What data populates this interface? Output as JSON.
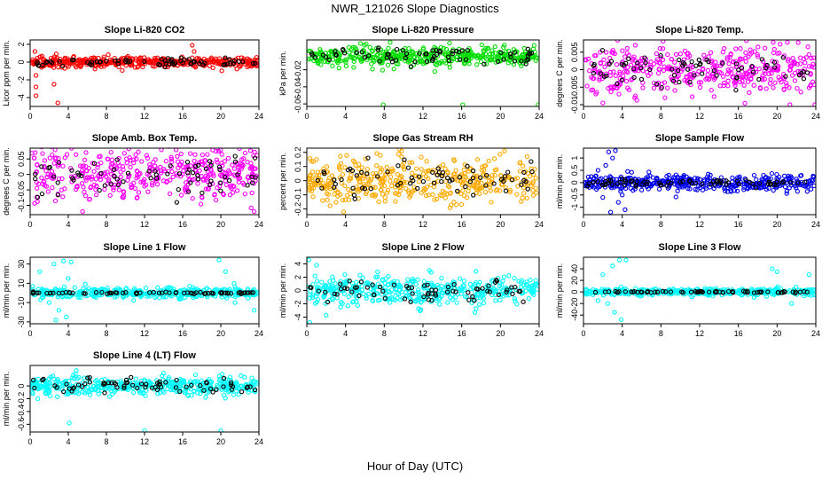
{
  "figure": {
    "title": "NWR_121026  Slope Diagnostics",
    "xlabel": "Hour of Day (UTC)"
  },
  "chart_data": [
    {
      "type": "scatter",
      "title": "Slope Li-820 CO2",
      "ylabel": "Licor ppm per min.",
      "xlim": [
        0,
        24
      ],
      "xticks": [
        0,
        4,
        8,
        12,
        16,
        20,
        24
      ],
      "ylim": [
        -5,
        2.5
      ],
      "yticks": [
        -4,
        -2,
        0,
        2
      ],
      "color": "#ff0000",
      "center": 0,
      "spread": 0.28,
      "black_spread": 0.2,
      "outliers": [
        {
          "x": 0.5,
          "y": 1.2
        },
        {
          "x": 0.6,
          "y": -1.5
        },
        {
          "x": 0.6,
          "y": -2.8
        },
        {
          "x": 0.6,
          "y": -3.8
        },
        {
          "x": 2.5,
          "y": -2.5
        },
        {
          "x": 2.9,
          "y": -4.6
        },
        {
          "x": 17,
          "y": 1.9
        },
        {
          "x": 17.2,
          "y": 1.2
        }
      ]
    },
    {
      "type": "scatter",
      "title": "Slope Li-820 Pressure",
      "ylabel": "kPa per min.",
      "xlim": [
        0,
        24
      ],
      "xticks": [
        0,
        4,
        8,
        12,
        16,
        20,
        24
      ],
      "ylim": [
        -0.063,
        0.015
      ],
      "yticks": [
        -0.06,
        -0.04,
        -0.02
      ],
      "color": "#00dd00",
      "center": -0.004,
      "spread": 0.006,
      "black_spread": 0.005,
      "outliers": [
        {
          "x": 7.9,
          "y": -0.061
        },
        {
          "x": 9,
          "y": -0.019
        },
        {
          "x": 16.1,
          "y": -0.061
        },
        {
          "x": 23.9,
          "y": -0.061
        }
      ]
    },
    {
      "type": "scatter",
      "title": "Slope Li-820 Temp.",
      "ylabel": "degrees C per min.",
      "xlim": [
        0,
        24
      ],
      "xticks": [
        0,
        4,
        8,
        12,
        16,
        20,
        24
      ],
      "ylim": [
        -0.0105,
        0.0085
      ],
      "yticks": [
        -0.01,
        -0.005,
        0,
        0.005
      ],
      "color": "#ff00ff",
      "center": 0,
      "spread": 0.0035,
      "black_spread": 0.0025,
      "outliers": [
        {
          "x": 2,
          "y": -0.0095
        },
        {
          "x": 19.6,
          "y": 0.0078
        },
        {
          "x": 23.9,
          "y": -0.01
        }
      ]
    },
    {
      "type": "scatter",
      "title": "Slope Amb. Box Temp.",
      "ylabel": "degrees C per min.",
      "xlim": [
        0,
        24
      ],
      "xticks": [
        0,
        4,
        8,
        12,
        16,
        20,
        24
      ],
      "ylim": [
        -0.13,
        0.085
      ],
      "yticks": [
        -0.1,
        -0.05,
        0,
        0.05
      ],
      "color": "#ff00ff",
      "center": 0,
      "spread": 0.04,
      "black_spread": 0.03,
      "outliers": [
        {
          "x": 5.5,
          "y": -0.12
        },
        {
          "x": 19.5,
          "y": 0.075
        },
        {
          "x": 23.5,
          "y": -0.12
        }
      ]
    },
    {
      "type": "scatter",
      "title": "Slope Gas Stream RH",
      "ylabel": "percent per min.",
      "xlim": [
        0,
        24
      ],
      "xticks": [
        0,
        4,
        8,
        12,
        16,
        20,
        24
      ],
      "ylim": [
        -0.24,
        0.23
      ],
      "yticks": [
        -0.2,
        -0.1,
        0,
        0.1,
        0.2
      ],
      "color": "#ffaa00",
      "center": 0,
      "spread": 0.08,
      "black_spread": 0.06,
      "outliers": [
        {
          "x": 3.8,
          "y": -0.22
        },
        {
          "x": 9.8,
          "y": 0.21
        }
      ]
    },
    {
      "type": "scatter",
      "title": "Slope Sample Flow",
      "ylabel": "ml/min per min.",
      "xlim": [
        0,
        24
      ],
      "xticks": [
        0,
        4,
        8,
        12,
        16,
        20,
        24
      ],
      "ylim": [
        -1.3,
        1.4
      ],
      "yticks": [
        -1,
        -0.5,
        0,
        0.5,
        1
      ],
      "color": "#0000ee",
      "center": 0,
      "spread": 0.16,
      "black_spread": 0.08,
      "outliers": [
        {
          "x": 2.3,
          "y": 0.7
        },
        {
          "x": 3,
          "y": 1.0
        },
        {
          "x": 2.6,
          "y": 1.25
        },
        {
          "x": 3.3,
          "y": 1.3
        },
        {
          "x": 2,
          "y": -0.6
        },
        {
          "x": 2.8,
          "y": -1.2
        },
        {
          "x": 3.6,
          "y": -0.8
        },
        {
          "x": 4.3,
          "y": -1.1
        },
        {
          "x": 1.5,
          "y": 0.5
        },
        {
          "x": 4,
          "y": -0.5
        }
      ]
    },
    {
      "type": "scatter",
      "title": "Slope Line 1 Flow",
      "ylabel": "ml/min per min.",
      "xlim": [
        0,
        24
      ],
      "xticks": [
        0,
        4,
        8,
        12,
        16,
        20,
        24
      ],
      "ylim": [
        -32,
        37
      ],
      "yticks": [
        -30,
        -10,
        10,
        30
      ],
      "color": "#00ffff",
      "center": 0,
      "spread": 2.5,
      "black_spread": 0.4,
      "outliers": [
        {
          "x": 1,
          "y": 22
        },
        {
          "x": 2.5,
          "y": 30
        },
        {
          "x": 3.5,
          "y": 33
        },
        {
          "x": 4.3,
          "y": 32
        },
        {
          "x": 2,
          "y": -10
        },
        {
          "x": 3,
          "y": -18
        },
        {
          "x": 2.7,
          "y": -28
        },
        {
          "x": 4,
          "y": 15
        },
        {
          "x": 3.8,
          "y": -25
        },
        {
          "x": 19.8,
          "y": 34
        },
        {
          "x": 20.5,
          "y": 22
        },
        {
          "x": 21.5,
          "y": -10
        },
        {
          "x": 23.5,
          "y": -18
        }
      ]
    },
    {
      "type": "scatter",
      "title": "Slope Line 2 Flow",
      "ylabel": "ml/min per min.",
      "xlim": [
        0,
        24
      ],
      "xticks": [
        0,
        4,
        8,
        12,
        16,
        20,
        24
      ],
      "ylim": [
        -5,
        5
      ],
      "yticks": [
        -4,
        -2,
        0,
        2,
        4
      ],
      "color": "#00ffff",
      "center": 0,
      "spread": 1.0,
      "black_spread": 0.9,
      "outliers": [
        {
          "x": 0.2,
          "y": 4.6
        },
        {
          "x": 0.3,
          "y": -4.8
        },
        {
          "x": 1,
          "y": 3.8
        },
        {
          "x": 2,
          "y": -3.7
        },
        {
          "x": 3.5,
          "y": -2.5
        }
      ]
    },
    {
      "type": "scatter",
      "title": "Slope Line 3 Flow",
      "ylabel": "ml/min per min.",
      "xlim": [
        0,
        24
      ],
      "xticks": [
        0,
        4,
        8,
        12,
        16,
        20,
        24
      ],
      "ylim": [
        -55,
        60
      ],
      "yticks": [
        -40,
        -20,
        0,
        20,
        40
      ],
      "color": "#00ffff",
      "center": 0,
      "spread": 3,
      "black_spread": 0.8,
      "outliers": [
        {
          "x": 2,
          "y": 30
        },
        {
          "x": 3,
          "y": 45
        },
        {
          "x": 3.7,
          "y": 55
        },
        {
          "x": 4.4,
          "y": 55
        },
        {
          "x": 2.5,
          "y": -20
        },
        {
          "x": 3.2,
          "y": -35
        },
        {
          "x": 3.9,
          "y": -48
        },
        {
          "x": 1.5,
          "y": -15
        },
        {
          "x": 19.5,
          "y": 40
        },
        {
          "x": 20,
          "y": 35
        },
        {
          "x": 21.5,
          "y": -20
        },
        {
          "x": 23.3,
          "y": 30
        }
      ]
    },
    {
      "type": "scatter",
      "title": "Slope Line 4 (LT) Flow",
      "ylabel": "ml/min per min.",
      "xlim": [
        0,
        24
      ],
      "xticks": [
        0,
        4,
        8,
        12,
        16,
        20,
        24
      ],
      "ylim": [
        -0.72,
        0.32
      ],
      "yticks": [
        -0.6,
        -0.4,
        -0.2,
        0
      ],
      "color": "#00ffff",
      "center": 0,
      "spread": 0.07,
      "black_spread": 0.06,
      "outliers": [
        {
          "x": 4.1,
          "y": -0.58
        },
        {
          "x": 12,
          "y": -0.7
        },
        {
          "x": 20,
          "y": -0.7
        },
        {
          "x": 0.8,
          "y": -0.2
        },
        {
          "x": 14,
          "y": 0.2
        }
      ]
    }
  ]
}
